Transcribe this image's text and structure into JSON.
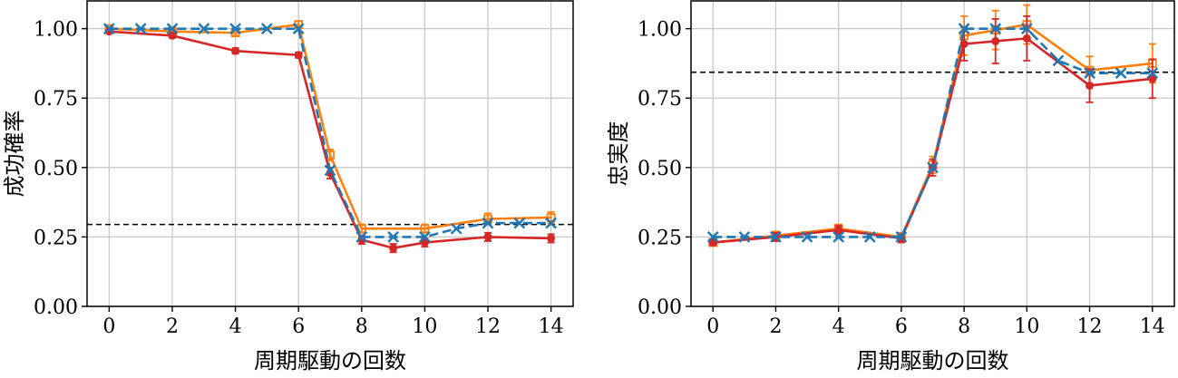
{
  "chart_data": [
    {
      "type": "line",
      "xlabel": "周期駆動の回数",
      "ylabel": "成功確率",
      "xlim": [
        -0.7,
        14.7
      ],
      "ylim": [
        0.0,
        1.1
      ],
      "xticks": [
        0,
        2,
        4,
        6,
        8,
        10,
        12,
        14
      ],
      "yticks": [
        0.0,
        0.25,
        0.5,
        0.75,
        1.0
      ],
      "xtick_labels": [
        "0",
        "2",
        "4",
        "6",
        "8",
        "10",
        "12",
        "14"
      ],
      "ytick_labels": [
        "0.00",
        "0.25",
        "0.50",
        "0.75",
        "1.00"
      ],
      "grid": true,
      "hline": 0.295,
      "series": [
        {
          "color": "#1f77b4",
          "marker": "x",
          "linestyle": "dashed",
          "x": [
            0,
            1,
            2,
            3,
            4,
            5,
            6,
            7,
            8,
            9,
            10,
            11,
            12,
            13,
            14
          ],
          "y": [
            1.0,
            1.0,
            1.0,
            1.0,
            1.0,
            1.0,
            1.0,
            0.49,
            0.25,
            0.25,
            0.25,
            0.28,
            0.3,
            0.3,
            0.3
          ],
          "err": [
            0,
            0,
            0,
            0,
            0,
            0,
            0,
            0,
            0,
            0,
            0,
            0,
            0,
            0,
            0
          ]
        },
        {
          "color": "#d62728",
          "marker": "o",
          "linestyle": "solid",
          "x": [
            0,
            2,
            4,
            6,
            7,
            8,
            9,
            10,
            12,
            14
          ],
          "y": [
            0.99,
            0.975,
            0.92,
            0.905,
            0.48,
            0.24,
            0.21,
            0.23,
            0.25,
            0.245
          ],
          "err": [
            0.005,
            0.008,
            0.01,
            0.01,
            0.02,
            0.015,
            0.015,
            0.015,
            0.015,
            0.015
          ]
        },
        {
          "color": "#ff7f0e",
          "marker": "s",
          "linestyle": "solid",
          "x": [
            0,
            2,
            4,
            6,
            7,
            8,
            10,
            12,
            14
          ],
          "y": [
            1.0,
            0.99,
            0.985,
            1.015,
            0.545,
            0.28,
            0.28,
            0.315,
            0.32
          ],
          "err": [
            0.005,
            0.008,
            0.01,
            0.012,
            0.02,
            0.015,
            0.015,
            0.02,
            0.02
          ]
        }
      ]
    },
    {
      "type": "line",
      "xlabel": "周期駆動の回数",
      "ylabel": "忠実度",
      "xlim": [
        -0.7,
        14.7
      ],
      "ylim": [
        0.0,
        1.1
      ],
      "xticks": [
        0,
        2,
        4,
        6,
        8,
        10,
        12,
        14
      ],
      "yticks": [
        0.0,
        0.25,
        0.5,
        0.75,
        1.0
      ],
      "xtick_labels": [
        "0",
        "2",
        "4",
        "6",
        "8",
        "10",
        "12",
        "14"
      ],
      "ytick_labels": [
        "0.00",
        "0.25",
        "0.50",
        "0.75",
        "1.00"
      ],
      "grid": true,
      "hline": 0.843,
      "series": [
        {
          "color": "#1f77b4",
          "marker": "x",
          "linestyle": "dashed",
          "x": [
            0,
            1,
            2,
            3,
            4,
            5,
            6,
            7,
            8,
            9,
            10,
            11,
            12,
            13,
            14
          ],
          "y": [
            0.25,
            0.25,
            0.25,
            0.25,
            0.25,
            0.25,
            0.25,
            0.5,
            1.0,
            1.0,
            1.0,
            0.885,
            0.84,
            0.84,
            0.84
          ],
          "err": [
            0,
            0,
            0,
            0,
            0,
            0,
            0,
            0,
            0,
            0,
            0,
            0,
            0,
            0,
            0
          ]
        },
        {
          "color": "#d62728",
          "marker": "o",
          "linestyle": "solid",
          "x": [
            0,
            2,
            4,
            6,
            7,
            8,
            9,
            10,
            12,
            14
          ],
          "y": [
            0.23,
            0.25,
            0.275,
            0.245,
            0.5,
            0.945,
            0.955,
            0.965,
            0.795,
            0.82
          ],
          "err": [
            0.01,
            0.015,
            0.015,
            0.015,
            0.03,
            0.06,
            0.08,
            0.08,
            0.06,
            0.07
          ]
        },
        {
          "color": "#ff7f0e",
          "marker": "s",
          "linestyle": "solid",
          "x": [
            0,
            2,
            4,
            6,
            7,
            8,
            9,
            10,
            12,
            14
          ],
          "y": [
            0.23,
            0.255,
            0.28,
            0.25,
            0.51,
            0.975,
            0.995,
            1.015,
            0.85,
            0.875
          ],
          "err": [
            0.01,
            0.015,
            0.015,
            0.015,
            0.03,
            0.07,
            0.07,
            0.07,
            0.05,
            0.07
          ]
        }
      ]
    }
  ]
}
